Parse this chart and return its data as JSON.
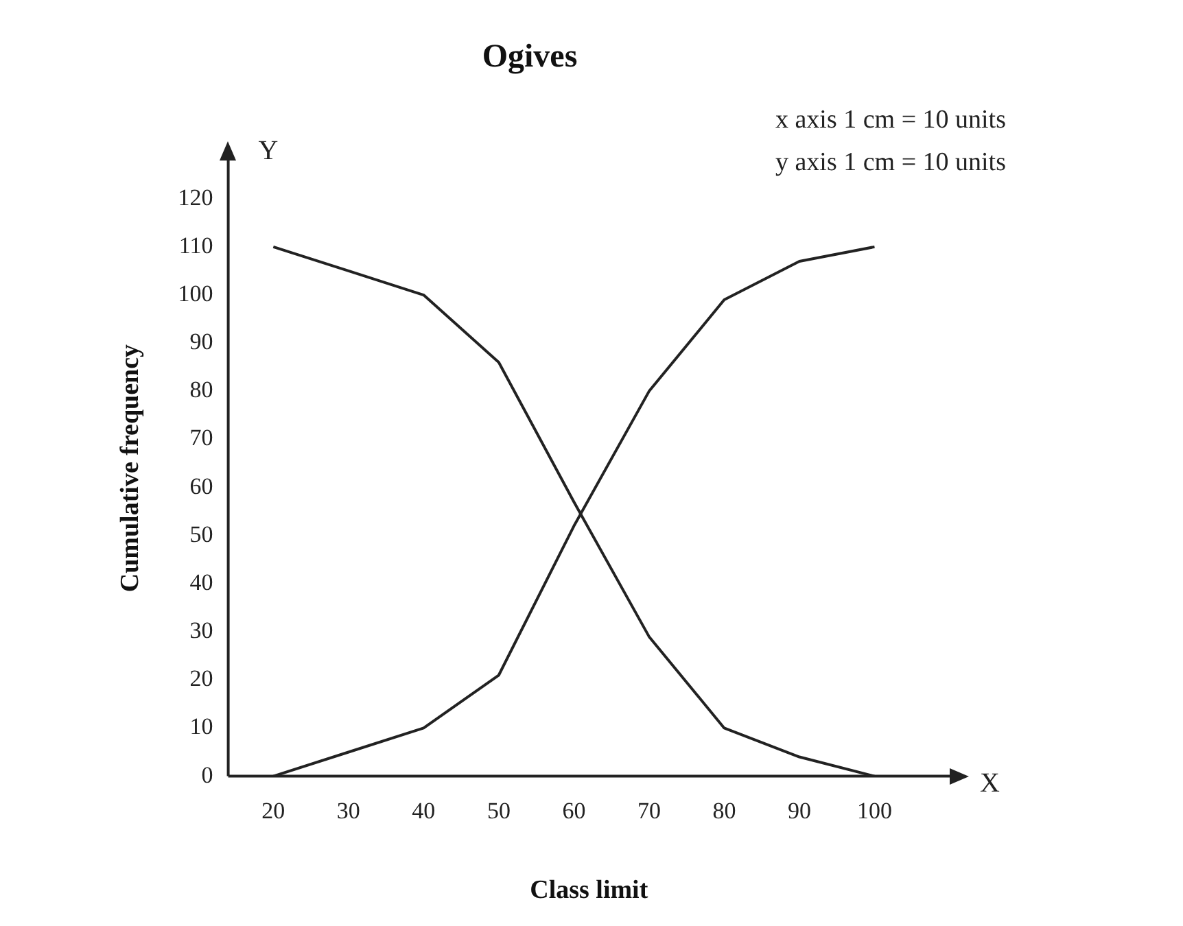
{
  "chart_data": {
    "type": "line",
    "title": "Ogives",
    "xlabel": "Class limit",
    "ylabel": "Cumulative frequency",
    "x": [
      20,
      30,
      40,
      50,
      60,
      70,
      80,
      90,
      100
    ],
    "series": [
      {
        "color": "#222222",
        "values": [
          0,
          5,
          10,
          21,
          52,
          80,
          99,
          107,
          110
        ]
      },
      {
        "color": "#222222",
        "values": [
          110,
          105,
          100,
          86,
          57,
          29,
          10,
          4,
          0
        ]
      }
    ],
    "xlim": [
      14,
      110
    ],
    "xticks": [
      20,
      30,
      40,
      50,
      60,
      70,
      80,
      90,
      100
    ],
    "ylim": [
      0,
      128
    ],
    "yticks": [
      0,
      10,
      20,
      30,
      40,
      50,
      60,
      70,
      80,
      90,
      100,
      110,
      120
    ],
    "grid": false,
    "legend": false,
    "marker": "none",
    "line_style": "solid",
    "annotations": [
      "Y",
      "X",
      "x axis 1 cm = 10 units",
      "y axis 1 cm = 10 units"
    ]
  }
}
